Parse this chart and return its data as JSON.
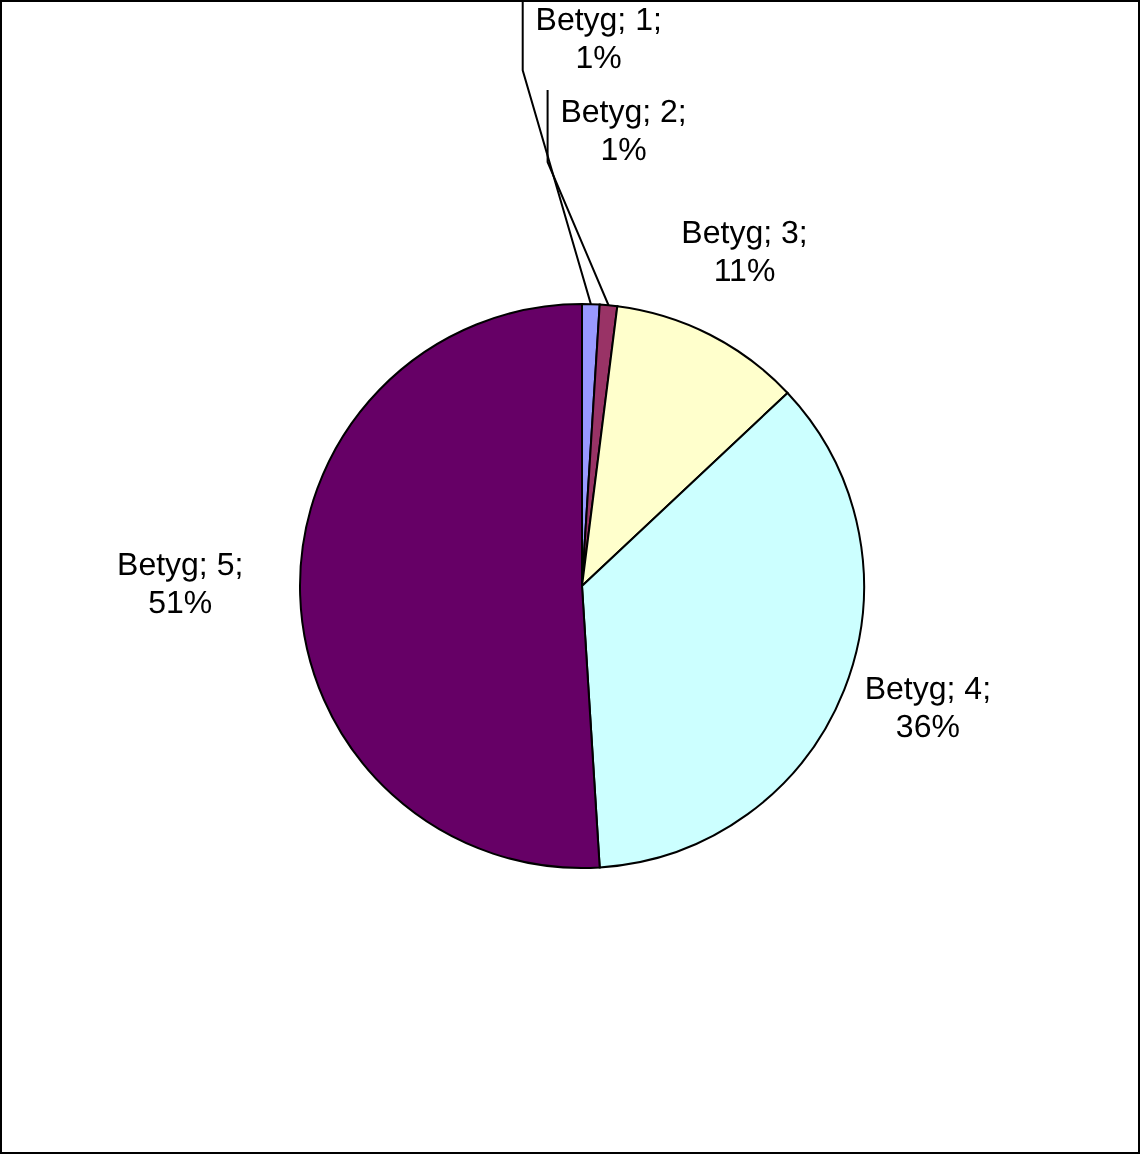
{
  "chart_data": {
    "type": "pie",
    "categories": [
      null,
      null,
      null,
      null,
      null
    ],
    "series": [
      {
        "values": [
          1,
          1,
          11,
          36,
          51
        ]
      }
    ],
    "colors": [
      "#9999ff",
      "#993366",
      "#ffffcc",
      "#ccffff",
      "#660066"
    ],
    "value_labels": [
      "Betyg; 1; 1%",
      "Betyg; 2; 1%",
      "Betyg; 3; 11%",
      "Betyg; 4; 36%",
      "Betyg; 5; 51%"
    ],
    "legend": false
  }
}
